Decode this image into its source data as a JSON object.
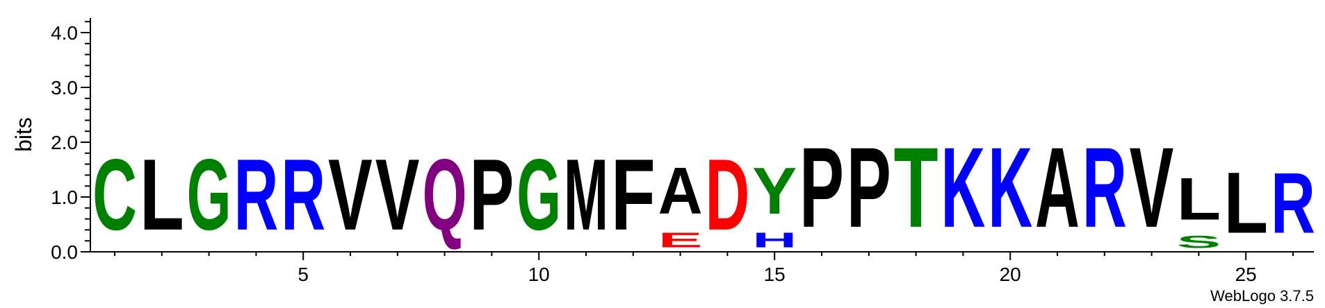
{
  "chart_data": {
    "type": "sequence-logo",
    "ylabel": "bits",
    "ylim": [
      0,
      4.32
    ],
    "yticks": [
      "0.0",
      "1.0",
      "2.0",
      "3.0",
      "4.0"
    ],
    "ytick_values": [
      0,
      1,
      2,
      3,
      4
    ],
    "xticks": [
      "5",
      "10",
      "15",
      "20",
      "25"
    ],
    "xtick_values": [
      5,
      10,
      15,
      20,
      25
    ],
    "positions": [
      {
        "pos": 1,
        "letters": [
          {
            "char": "C",
            "bits": 2.07,
            "color": "#008000"
          }
        ]
      },
      {
        "pos": 2,
        "letters": [
          {
            "char": "L",
            "bits": 2.07,
            "color": "#000000"
          }
        ]
      },
      {
        "pos": 3,
        "letters": [
          {
            "char": "G",
            "bits": 2.07,
            "color": "#008000"
          }
        ]
      },
      {
        "pos": 4,
        "letters": [
          {
            "char": "R",
            "bits": 2.07,
            "color": "#0000FF"
          }
        ]
      },
      {
        "pos": 5,
        "letters": [
          {
            "char": "R",
            "bits": 2.07,
            "color": "#0000FF"
          }
        ]
      },
      {
        "pos": 6,
        "letters": [
          {
            "char": "V",
            "bits": 2.07,
            "color": "#000000"
          }
        ]
      },
      {
        "pos": 7,
        "letters": [
          {
            "char": "V",
            "bits": 2.07,
            "color": "#000000"
          }
        ]
      },
      {
        "pos": 8,
        "letters": [
          {
            "char": "Q",
            "bits": 2.07,
            "color": "#800080"
          }
        ]
      },
      {
        "pos": 9,
        "letters": [
          {
            "char": "P",
            "bits": 2.07,
            "color": "#000000"
          }
        ]
      },
      {
        "pos": 10,
        "letters": [
          {
            "char": "G",
            "bits": 2.07,
            "color": "#008000"
          }
        ]
      },
      {
        "pos": 11,
        "letters": [
          {
            "char": "M",
            "bits": 2.07,
            "color": "#000000"
          }
        ]
      },
      {
        "pos": 12,
        "letters": [
          {
            "char": "F",
            "bits": 2.07,
            "color": "#000000"
          }
        ]
      },
      {
        "pos": 13,
        "letters": [
          {
            "char": "E",
            "bits": 0.43,
            "color": "#FF0000"
          },
          {
            "char": "A",
            "bits": 1.35,
            "color": "#000000"
          }
        ]
      },
      {
        "pos": 14,
        "letters": [
          {
            "char": "D",
            "bits": 2.07,
            "color": "#FF0000"
          }
        ]
      },
      {
        "pos": 15,
        "letters": [
          {
            "char": "H",
            "bits": 0.43,
            "color": "#0000FF"
          },
          {
            "char": "Y",
            "bits": 1.35,
            "color": "#008000"
          }
        ]
      },
      {
        "pos": 16,
        "letters": [
          {
            "char": "P",
            "bits": 2.33,
            "color": "#000000"
          }
        ]
      },
      {
        "pos": 17,
        "letters": [
          {
            "char": "P",
            "bits": 2.33,
            "color": "#000000"
          }
        ]
      },
      {
        "pos": 18,
        "letters": [
          {
            "char": "T",
            "bits": 2.33,
            "color": "#008000"
          }
        ]
      },
      {
        "pos": 19,
        "letters": [
          {
            "char": "K",
            "bits": 2.33,
            "color": "#0000FF"
          }
        ]
      },
      {
        "pos": 20,
        "letters": [
          {
            "char": "K",
            "bits": 2.33,
            "color": "#0000FF"
          }
        ]
      },
      {
        "pos": 21,
        "letters": [
          {
            "char": "A",
            "bits": 2.33,
            "color": "#000000"
          }
        ]
      },
      {
        "pos": 22,
        "letters": [
          {
            "char": "R",
            "bits": 2.33,
            "color": "#0000FF"
          }
        ]
      },
      {
        "pos": 23,
        "letters": [
          {
            "char": "V",
            "bits": 2.33,
            "color": "#000000"
          }
        ]
      },
      {
        "pos": 24,
        "letters": [
          {
            "char": "S",
            "bits": 0.35,
            "color": "#008000"
          },
          {
            "char": "L",
            "bits": 1.23,
            "color": "#000000"
          }
        ]
      },
      {
        "pos": 25,
        "letters": [
          {
            "char": "L",
            "bits": 1.77,
            "color": "#000000"
          }
        ]
      },
      {
        "pos": 26,
        "letters": [
          {
            "char": "R",
            "bits": 1.77,
            "color": "#0000FF"
          }
        ]
      }
    ]
  },
  "footer": {
    "generator": "WebLogo 3.7.5"
  }
}
